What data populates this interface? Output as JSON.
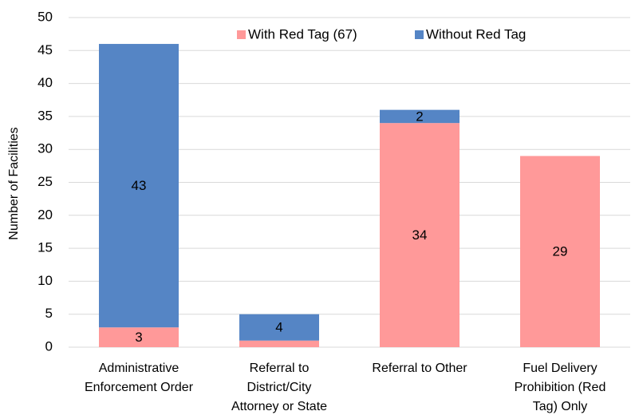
{
  "chart_data": {
    "type": "stacked_bar",
    "y_label": "Number of Facilities",
    "categories": [
      [
        "Administrative",
        "Enforcement Order"
      ],
      [
        "Referral to",
        "District/City",
        "Attorney or State"
      ],
      [
        "Referral to Other"
      ],
      [
        "Fuel Delivery",
        "Prohibition (Red",
        "Tag) Only"
      ]
    ],
    "series": [
      {
        "name": "With Red Tag (67)",
        "color": "#ff9999",
        "values": [
          3,
          1,
          34,
          29
        ],
        "value_labels": [
          "3",
          null,
          "34",
          "29"
        ]
      },
      {
        "name": "Without Red Tag",
        "color": "#5585c5",
        "values": [
          43,
          4,
          2,
          null
        ],
        "value_labels": [
          "43",
          "4",
          "2",
          null
        ]
      }
    ],
    "ylim": [
      0,
      50
    ],
    "yticks": [
      0,
      5,
      10,
      15,
      20,
      25,
      30,
      35,
      40,
      45,
      50
    ],
    "grid": true,
    "legend": "top"
  }
}
